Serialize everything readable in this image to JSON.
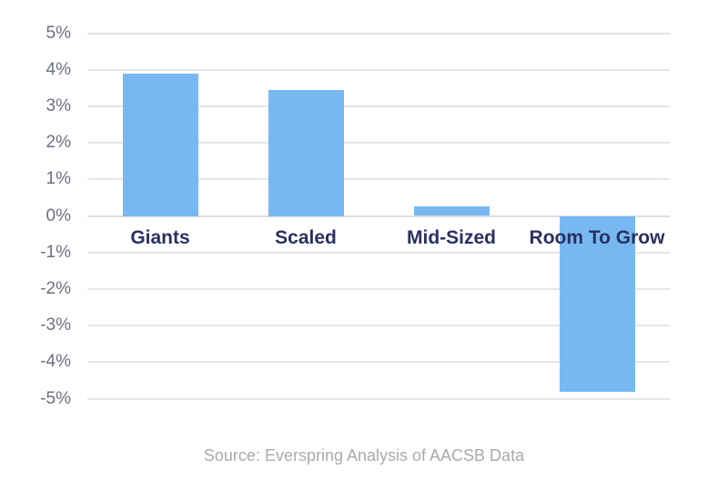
{
  "chart_data": {
    "type": "bar",
    "categories": [
      "Giants",
      "Scaled",
      "Mid-Sized",
      "Room To Grow"
    ],
    "values": [
      3.9,
      3.45,
      0.25,
      -4.8
    ],
    "title": "",
    "xlabel": "",
    "ylabel": "",
    "ylim": [
      -5,
      5
    ],
    "y_tick_step": 1,
    "y_ticks": [
      "5%",
      "4%",
      "3%",
      "2%",
      "1%",
      "0%",
      "-1%",
      "-2%",
      "-3%",
      "-4%",
      "-5%"
    ],
    "grid": true,
    "legend": false,
    "source": "Source: Everspring Analysis of AACSB Data"
  },
  "colors": {
    "bar": "#77b8f3",
    "category_label": "#2b3061",
    "tick_label": "#6c7080",
    "gridline": "#e5e6ec",
    "zero_line": "#dcdde4",
    "source_text": "#a9aaae",
    "background": "#ffffff"
  }
}
